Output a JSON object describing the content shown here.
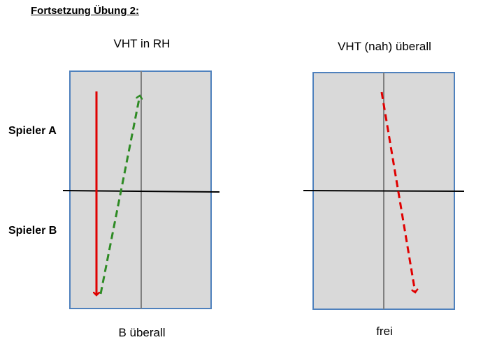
{
  "heading": "Fortsetzung Übung 2:",
  "players": {
    "a": "Spieler A",
    "b": "Spieler B"
  },
  "tables": [
    {
      "title": "VHT in RH",
      "caption": "B überall"
    },
    {
      "title": "VHT (nah) überall",
      "caption": "frei"
    }
  ],
  "colors": {
    "table_fill": "#d9d9d9",
    "table_border": "#4f81bd",
    "center_line": "#808080",
    "red": "#e00000",
    "green": "#2e8b24"
  }
}
